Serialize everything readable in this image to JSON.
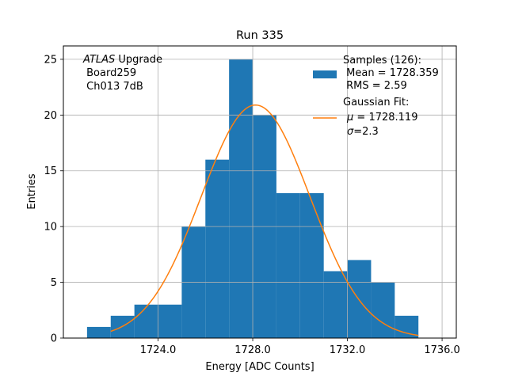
{
  "chart_data": {
    "type": "histogram",
    "title": "Run 335",
    "xlabel": "Energy [ADC Counts]",
    "ylabel": "Entries",
    "xlim": [
      1720.0,
      1736.6
    ],
    "ylim": [
      0,
      26.2
    ],
    "grid": true,
    "xticks": [
      1724.0,
      1728.0,
      1732.0,
      1736.0
    ],
    "xtick_labels": [
      "1724.0",
      "1728.0",
      "1732.0",
      "1736.0"
    ],
    "yticks": [
      0,
      5,
      10,
      15,
      20,
      25
    ],
    "ytick_labels": [
      "0",
      "5",
      "10",
      "15",
      "20",
      "25"
    ],
    "bar_color": "#1f77b4",
    "fit_color": "#ff7f0e",
    "bin_edges": [
      1721,
      1722,
      1723,
      1724,
      1725,
      1726,
      1727,
      1728,
      1729,
      1730,
      1731,
      1732,
      1733,
      1734,
      1735
    ],
    "counts": [
      1,
      2,
      3,
      3,
      10,
      16,
      25,
      20,
      13,
      13,
      6,
      7,
      5,
      2
    ],
    "fit": {
      "name": "Gaussian Fit",
      "mu": 1728.119,
      "sigma": 2.3,
      "amplitude": 20.9,
      "x_range": [
        1722,
        1735
      ]
    },
    "annotation": {
      "line1_italic": "ATLAS",
      "line1_rest": " Upgrade",
      "line2": " Board259",
      "line3": " Ch013 7dB"
    },
    "legend": {
      "placement": "upper right",
      "samples_label_lines": [
        "Samples (126):",
        " Mean = 1728.359",
        " RMS = 2.59"
      ],
      "fit_label_line1": "Gaussian Fit:",
      "fit_mu_symbol": "μ",
      "fit_mu_text": " = 1728.119",
      "fit_sigma_symbol": "σ",
      "fit_sigma_text": "=2.3"
    }
  }
}
